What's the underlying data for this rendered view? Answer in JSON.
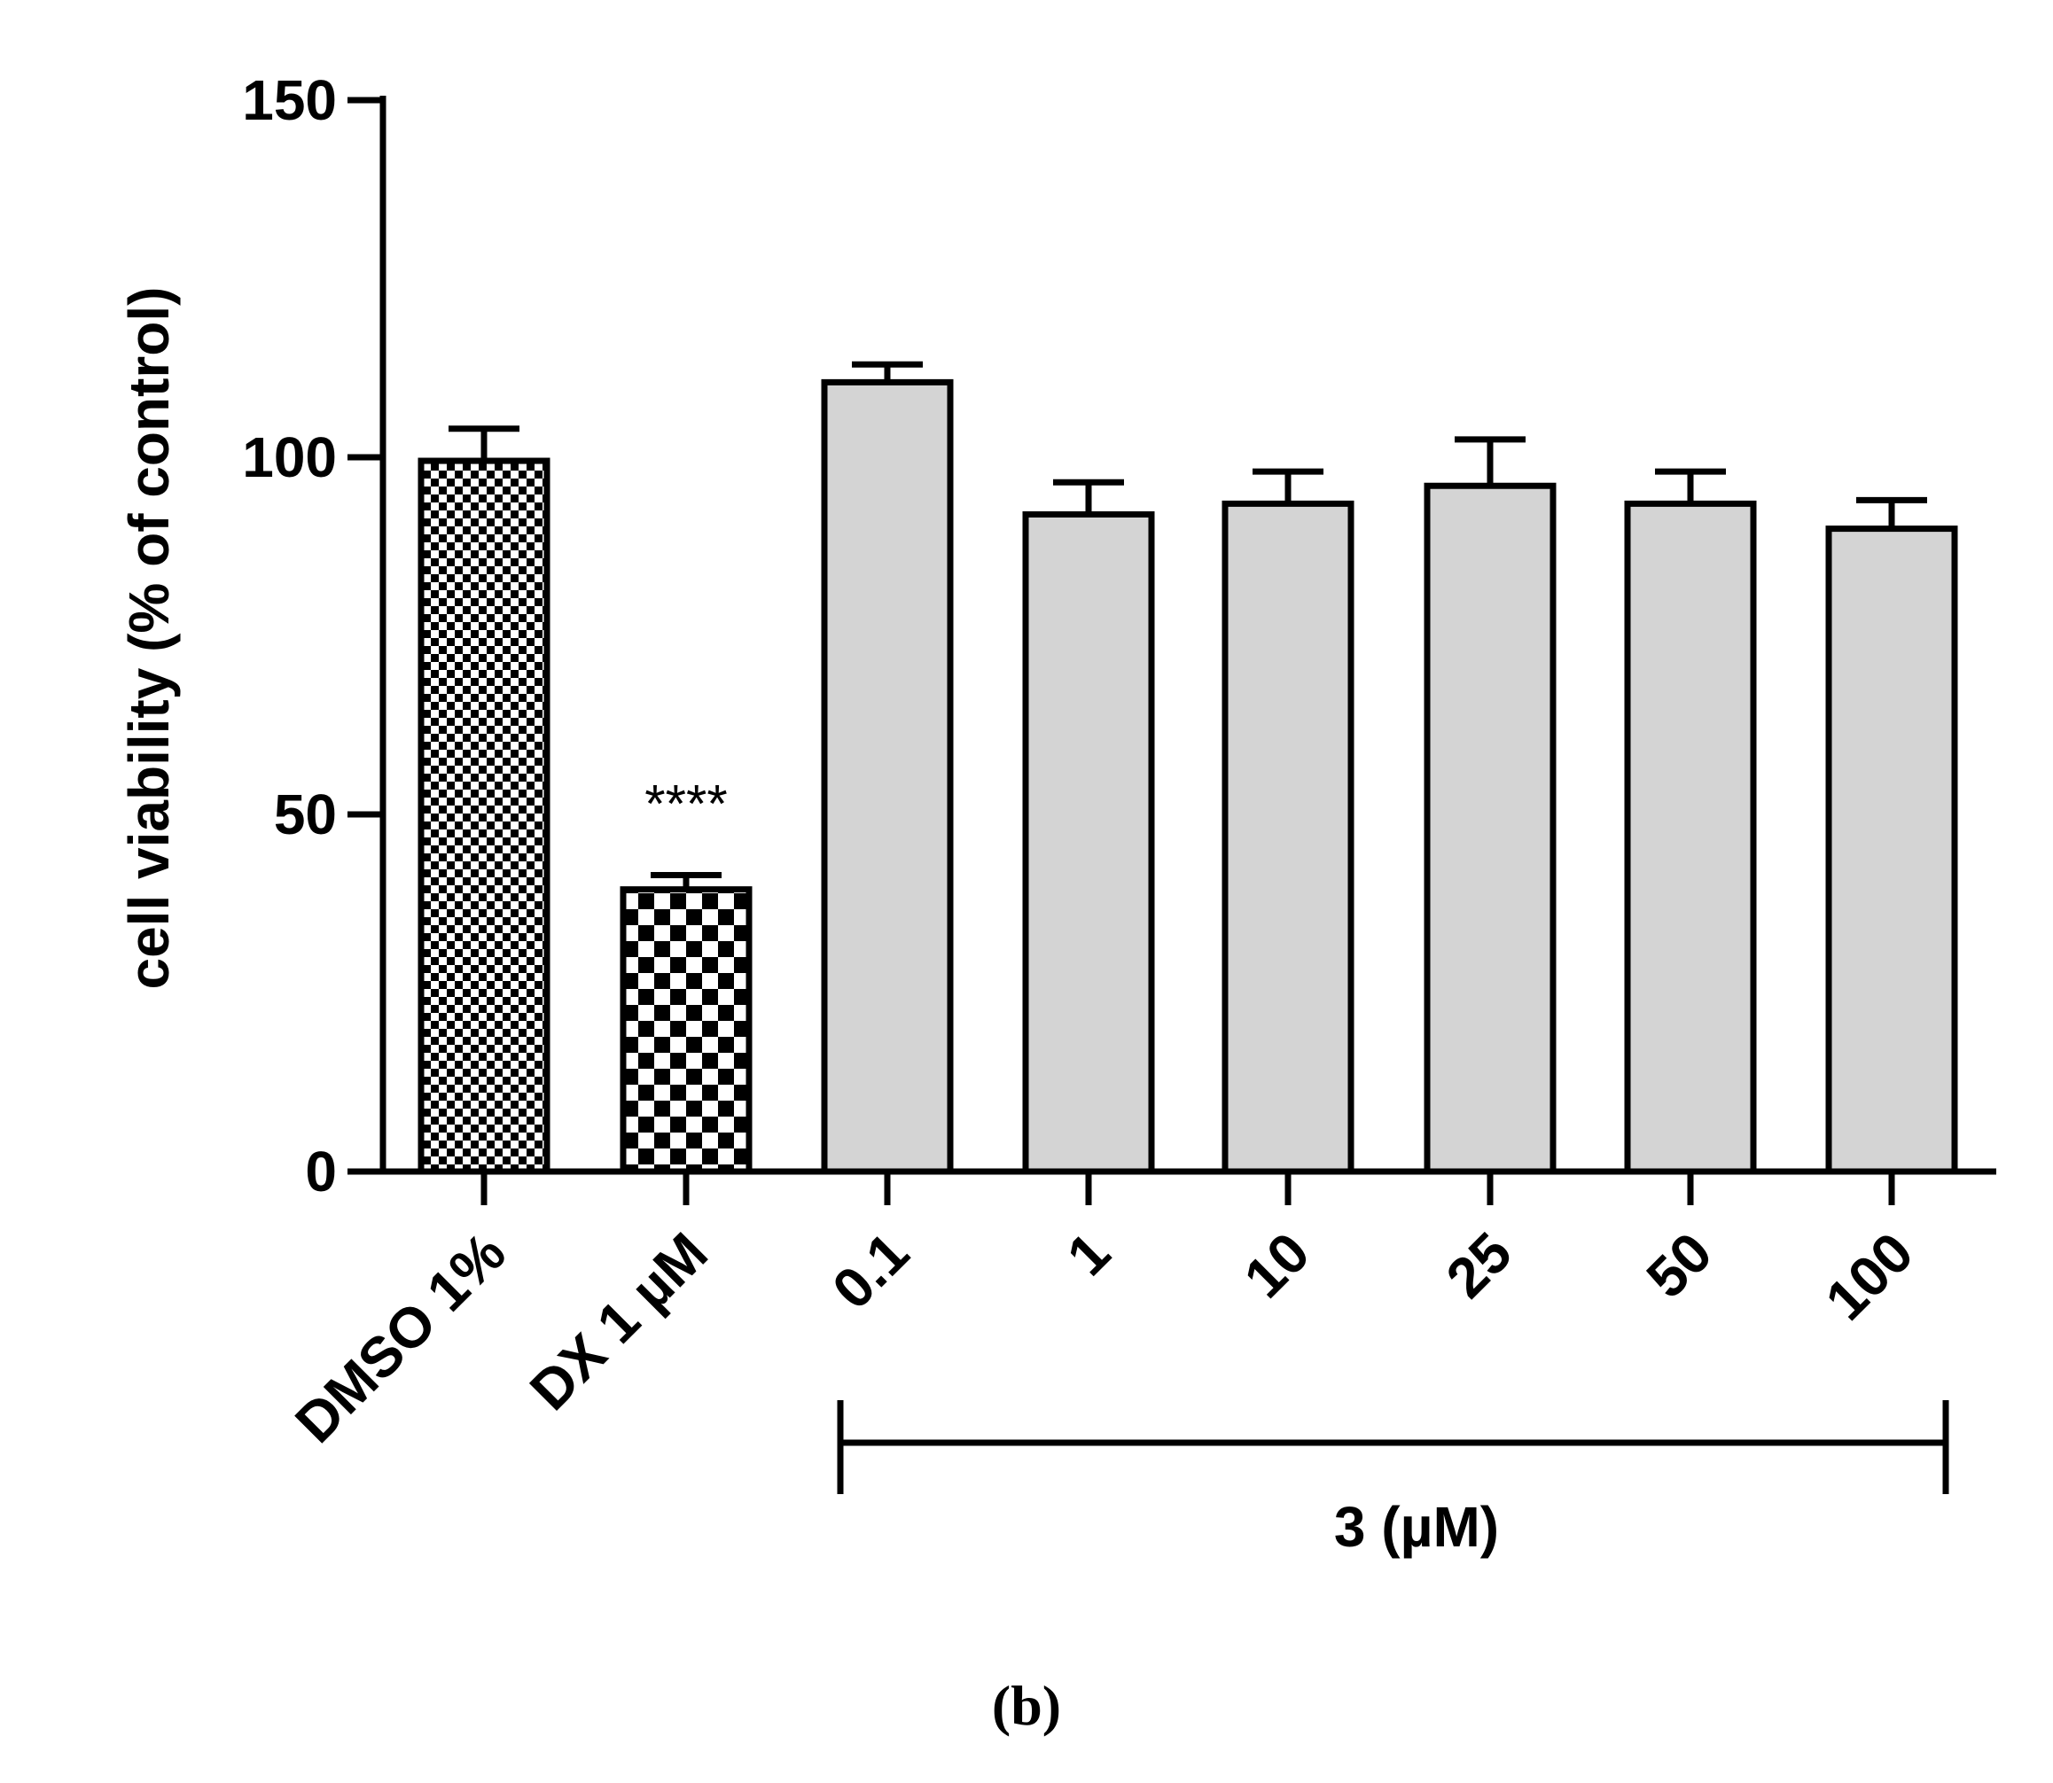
{
  "chart_data": {
    "type": "bar",
    "title": "",
    "ylabel": "cell viability (% of control)",
    "xlabel": "",
    "ylim": [
      0,
      150
    ],
    "yticks": [
      0,
      50,
      100,
      150
    ],
    "grid": false,
    "categories": [
      "DMSO 1%",
      "DX 1 µM",
      "0.1",
      "1",
      "10",
      "25",
      "50",
      "100"
    ],
    "values": [
      99.5,
      39.5,
      110.5,
      92,
      93.5,
      96,
      93.5,
      90
    ],
    "errors": [
      4.5,
      2,
      2.5,
      4.5,
      4.5,
      6.5,
      4.5,
      4
    ],
    "fills": [
      "checker-fine",
      "checker-coarse",
      "gray",
      "gray",
      "gray",
      "gray",
      "gray",
      "gray"
    ],
    "colors": {
      "bar_fill": "#d4d4d4",
      "stroke": "#000000",
      "checker_dark": "#000000",
      "checker_light": "#ffffff"
    },
    "significance": [
      {
        "category": "DX 1 µM",
        "label": "****"
      }
    ],
    "group_bracket": {
      "label": "3 (µM)",
      "from": "0.1",
      "to": "100"
    },
    "panel_label": "(b)"
  }
}
